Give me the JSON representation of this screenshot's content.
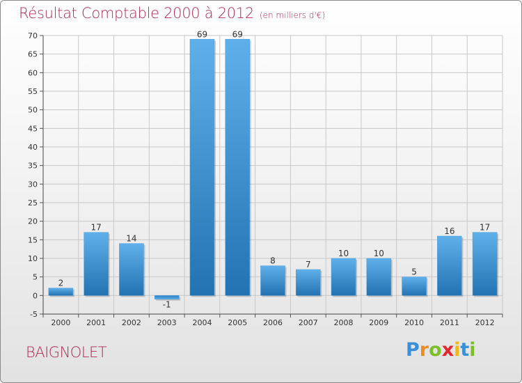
{
  "chart_data": {
    "type": "bar",
    "title": "Résultat Comptable 2000 à 2012",
    "subtitle": "(en milliers d'€)",
    "categories": [
      "2000",
      "2001",
      "2002",
      "2003",
      "2004",
      "2005",
      "2006",
      "2007",
      "2008",
      "2009",
      "2010",
      "2011",
      "2012"
    ],
    "values": [
      2,
      17,
      14,
      -1,
      69,
      69,
      8,
      7,
      10,
      10,
      5,
      16,
      17
    ],
    "value_labels": [
      "2",
      "17",
      "14",
      "-1",
      "69",
      "69",
      "8",
      "7",
      "10",
      "10",
      "5",
      "16",
      "17"
    ],
    "ylim": [
      -5,
      70
    ],
    "yticks": [
      "-5",
      "0",
      "5",
      "10",
      "15",
      "20",
      "25",
      "30",
      "35",
      "40",
      "45",
      "50",
      "55",
      "60",
      "65",
      "70"
    ],
    "grid": true,
    "xlabel": "",
    "ylabel": ""
  },
  "commune": "BAIGNOLET",
  "logo": {
    "letters": [
      "P",
      "r",
      "o",
      "x",
      "i",
      "t",
      "i"
    ],
    "colors": [
      "#3a8fd6",
      "#f08a1c",
      "#7cbf2a",
      "#e3262f",
      "#f2b51a",
      "#3a8fd6",
      "#7cbf2a"
    ]
  },
  "colors": {
    "accent": "#b02a52",
    "bar_light": "#5fb0ea",
    "bar_dark": "#1f6fae",
    "grid": "#c8c8c8"
  }
}
